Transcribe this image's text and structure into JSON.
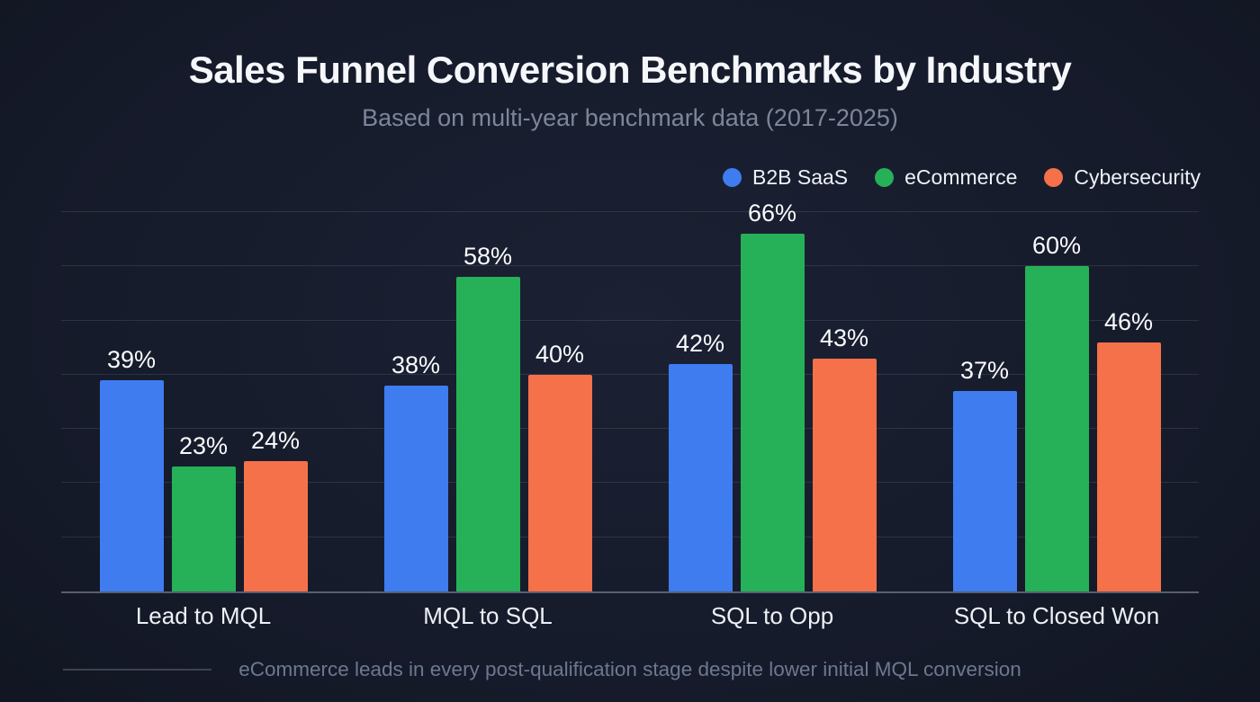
{
  "page": {
    "title": "Sales Funnel Conversion Benchmarks by Industry",
    "subtitle": "Based on multi-year benchmark data (2017-2025)",
    "footnote": "eCommerce leads in every post-qualification stage despite lower initial MQL conversion"
  },
  "colors": {
    "background": "#161b2b",
    "title_text": "#f6f7fa",
    "subtitle_text": "#7d8699",
    "value_label_text": "#fafbfd",
    "category_label_text": "#edf0f5",
    "footnote_text": "#6d7890",
    "gridline": "rgba(152,164,190,0.17)",
    "axis_line": "rgba(152,164,190,0.50)"
  },
  "chart_data": {
    "type": "bar",
    "title": "Sales Funnel Conversion Benchmarks by Industry",
    "subtitle": "Based on multi-year benchmark data (2017-2025)",
    "categories": [
      "Lead to MQL",
      "MQL to SQL",
      "SQL to Opp",
      "SQL to Closed Won"
    ],
    "series": [
      {
        "name": "B2B SaaS",
        "color": "#3e7cf0",
        "values": [
          39,
          38,
          42,
          37
        ]
      },
      {
        "name": "eCommerce",
        "color": "#26b158",
        "values": [
          23,
          58,
          66,
          60
        ]
      },
      {
        "name": "Cybersecurity",
        "color": "#f5714a",
        "values": [
          24,
          40,
          43,
          46
        ]
      }
    ],
    "value_suffix": "%",
    "data_labels": true,
    "xlabel": "",
    "ylabel": "",
    "ylim": [
      0,
      70
    ],
    "gridline_step": 10,
    "grid": "horizontal-only",
    "y_axis_tick_labels": "none",
    "legend_position": "top-right",
    "annotation": "eCommerce leads in every post-qualification stage despite lower initial MQL conversion"
  }
}
